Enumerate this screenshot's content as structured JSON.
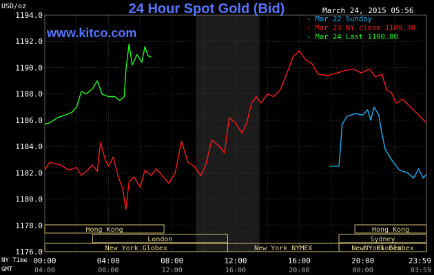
{
  "header": {
    "unit": "USD/oz",
    "title": "24 Hour Spot Gold (Bid)",
    "timestamp": "March 24, 2015 05:56",
    "site": "www.kitco.com"
  },
  "legend": [
    {
      "label": "Mar 22 Sunday",
      "color": "#1ab2ff"
    },
    {
      "label": "Mar 23 NY close 1189.30",
      "color": "#ff1a1a"
    },
    {
      "label": "Mar 24 Last 1190.80",
      "color": "#1aff1a"
    }
  ],
  "axis_rows": {
    "ny_time_label": "NY Time",
    "gmt_label": "GMT",
    "ny_ticks": [
      "00:00",
      "04:00",
      "08:00",
      "12:00",
      "16:00",
      "20:00",
      "23:59"
    ],
    "gmt_ticks": [
      "04:00",
      "08:00",
      "12:00",
      "16:00",
      "20:00",
      "00:00",
      "03:59"
    ]
  },
  "sessions": [
    {
      "label": "Hong Kong",
      "row": 0,
      "from": 0,
      "to": 7.5
    },
    {
      "label": "London",
      "row": 1,
      "from": 3,
      "to": 11.5
    },
    {
      "label": "New York Globex",
      "row": 2,
      "from": 0,
      "to": 11.5
    },
    {
      "label": "New York NYMEX",
      "row": 2,
      "from": 11.5,
      "to": 18.5
    },
    {
      "label": "NY Globex",
      "row": 2,
      "from": 18.5,
      "to": 24
    },
    {
      "label": "Hong Kong",
      "row": 0,
      "from": 19.5,
      "to": 24
    },
    {
      "label": "Sydney",
      "row": 1,
      "from": 18.5,
      "to": 24
    },
    {
      "label": "New York Globex",
      "row": 2,
      "from": 18.5,
      "to": 24
    }
  ],
  "chart_data": {
    "type": "line",
    "title": "24 Hour Spot Gold (Bid)",
    "ylabel": "USD/oz",
    "xlabel": "",
    "x_unit": "hours (NY time)",
    "xlim": [
      0,
      24
    ],
    "ylim": [
      1176,
      1194
    ],
    "y_ticks": [
      1176.0,
      1178.0,
      1180.0,
      1182.0,
      1184.0,
      1186.0,
      1188.0,
      1190.0,
      1192.0,
      1194.0
    ],
    "x_ticks": [
      "00:00",
      "04:00",
      "08:00",
      "12:00",
      "16:00",
      "20:00",
      "23:59"
    ],
    "grid": true,
    "highlight_band": [
      9.5,
      13.5
    ],
    "series": [
      {
        "name": "Mar 22 Sunday",
        "color": "#1ab2ff",
        "points": [
          [
            17.9,
            1182.5
          ],
          [
            18.5,
            1182.5
          ],
          [
            18.6,
            1184
          ],
          [
            18.7,
            1185.7
          ],
          [
            19.0,
            1186.3
          ],
          [
            19.5,
            1186.5
          ],
          [
            20.0,
            1186.4
          ],
          [
            20.3,
            1186.8
          ],
          [
            20.5,
            1186.0
          ],
          [
            20.7,
            1187.0
          ],
          [
            21.0,
            1186.4
          ],
          [
            21.2,
            1185.0
          ],
          [
            21.4,
            1183.8
          ],
          [
            21.8,
            1183.0
          ],
          [
            22.3,
            1182.2
          ],
          [
            22.8,
            1182.0
          ],
          [
            23.2,
            1181.6
          ],
          [
            23.5,
            1182.3
          ],
          [
            23.8,
            1181.6
          ],
          [
            24.0,
            1181.9
          ]
        ]
      },
      {
        "name": "Mar 23 NY close 1189.30",
        "color": "#ff1a1a",
        "points": [
          [
            0,
            1182.2
          ],
          [
            0.3,
            1182.8
          ],
          [
            1.0,
            1182.6
          ],
          [
            1.5,
            1182.2
          ],
          [
            2.0,
            1182.4
          ],
          [
            2.3,
            1181.8
          ],
          [
            2.7,
            1182.2
          ],
          [
            3.0,
            1182.6
          ],
          [
            3.3,
            1182.1
          ],
          [
            3.5,
            1184.3
          ],
          [
            3.8,
            1183.0
          ],
          [
            4.0,
            1182.5
          ],
          [
            4.3,
            1183.2
          ],
          [
            4.6,
            1181.8
          ],
          [
            4.9,
            1180.8
          ],
          [
            5.1,
            1179.2
          ],
          [
            5.3,
            1181.3
          ],
          [
            5.6,
            1181.7
          ],
          [
            6.0,
            1180.9
          ],
          [
            6.3,
            1182.2
          ],
          [
            6.7,
            1181.8
          ],
          [
            7.0,
            1182.3
          ],
          [
            7.3,
            1181.9
          ],
          [
            7.8,
            1181.2
          ],
          [
            8.2,
            1182.0
          ],
          [
            8.6,
            1184.4
          ],
          [
            9.0,
            1182.8
          ],
          [
            9.4,
            1182.5
          ],
          [
            9.8,
            1181.8
          ],
          [
            10.1,
            1182.5
          ],
          [
            10.5,
            1184.5
          ],
          [
            11.0,
            1184.0
          ],
          [
            11.3,
            1183.5
          ],
          [
            11.6,
            1186.2
          ],
          [
            12.0,
            1185.8
          ],
          [
            12.4,
            1185.0
          ],
          [
            12.7,
            1185.8
          ],
          [
            13.0,
            1187.3
          ],
          [
            13.3,
            1187.8
          ],
          [
            13.6,
            1187.3
          ],
          [
            14.0,
            1188.0
          ],
          [
            14.4,
            1187.8
          ],
          [
            14.8,
            1188.3
          ],
          [
            15.2,
            1189.5
          ],
          [
            15.6,
            1190.8
          ],
          [
            16.0,
            1191.3
          ],
          [
            16.4,
            1190.6
          ],
          [
            16.8,
            1190.3
          ],
          [
            17.2,
            1189.5
          ],
          [
            17.8,
            1189.4
          ],
          [
            18.4,
            1189.6
          ],
          [
            18.9,
            1189.8
          ],
          [
            19.4,
            1189.9
          ],
          [
            19.9,
            1189.6
          ],
          [
            20.4,
            1189.9
          ],
          [
            20.8,
            1189.3
          ],
          [
            21.2,
            1189.5
          ],
          [
            21.5,
            1188.3
          ],
          [
            21.8,
            1188.1
          ],
          [
            22.1,
            1187.3
          ],
          [
            22.5,
            1187.6
          ],
          [
            23.0,
            1187.0
          ],
          [
            23.5,
            1186.4
          ],
          [
            24.0,
            1185.8
          ]
        ]
      },
      {
        "name": "Mar 24 Last 1190.80",
        "color": "#1aff1a",
        "points": [
          [
            0,
            1185.7
          ],
          [
            0.3,
            1185.8
          ],
          [
            0.8,
            1186.2
          ],
          [
            1.3,
            1186.4
          ],
          [
            1.7,
            1186.6
          ],
          [
            2.0,
            1187.0
          ],
          [
            2.3,
            1188.2
          ],
          [
            2.6,
            1188.0
          ],
          [
            3.0,
            1188.4
          ],
          [
            3.3,
            1189.0
          ],
          [
            3.6,
            1188.0
          ],
          [
            4.0,
            1187.8
          ],
          [
            4.4,
            1187.8
          ],
          [
            4.7,
            1187.5
          ],
          [
            5.0,
            1187.8
          ],
          [
            5.1,
            1189.8
          ],
          [
            5.3,
            1191.8
          ],
          [
            5.5,
            1190.2
          ],
          [
            5.8,
            1191.0
          ],
          [
            6.1,
            1190.4
          ],
          [
            6.3,
            1191.6
          ],
          [
            6.5,
            1190.9
          ],
          [
            6.7,
            1190.8
          ]
        ]
      }
    ]
  }
}
